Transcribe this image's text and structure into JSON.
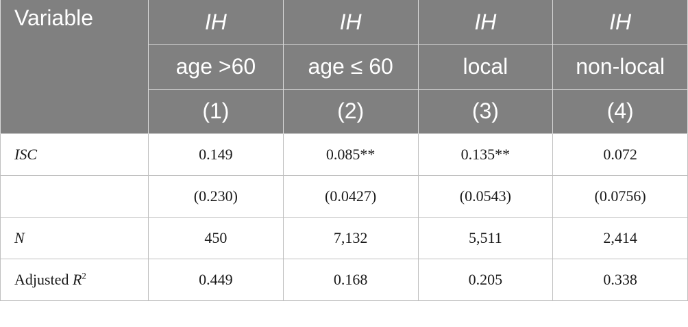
{
  "table": {
    "header": {
      "variable_label": "Variable",
      "dependent": [
        "IH",
        "IH",
        "IH",
        "IH"
      ],
      "groups": [
        "age >60",
        "age ≤ 60",
        "local",
        "non-local"
      ],
      "numbers": [
        "(1)",
        "(2)",
        "(3)",
        "(4)"
      ]
    },
    "rows": [
      {
        "label": "ISC",
        "values": [
          "0.149",
          "0.085**",
          "0.135**",
          "0.072"
        ]
      },
      {
        "label": "",
        "values": [
          "(0.230)",
          "(0.0427)",
          "(0.0543)",
          "(0.0756)"
        ]
      },
      {
        "label": "N",
        "values": [
          "450",
          "7,132",
          "5,511",
          "2,414"
        ]
      },
      {
        "label": "Adjusted R",
        "label_sup": "2",
        "values": [
          "0.449",
          "0.168",
          "0.205",
          "0.338"
        ]
      }
    ]
  }
}
